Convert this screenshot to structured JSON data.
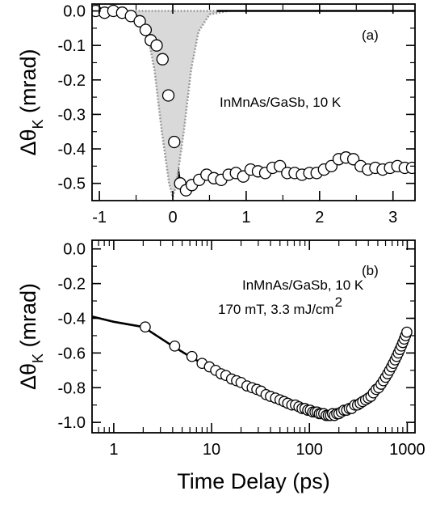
{
  "chart_data": [
    {
      "type": "line",
      "panel_label": "(a)",
      "annotation_lines": [
        "InMnAs/GaSb, 10 K"
      ],
      "ylabel": "ΔθK (mrad)",
      "ylabel_main": "Δθ",
      "ylabel_sub": "K",
      "ylabel_rest": " (mrad)",
      "xlim": [
        -1.1,
        3.3
      ],
      "ylim": [
        -0.55,
        0.02
      ],
      "x_scale": "linear",
      "x_ticks": [
        -1,
        0,
        1,
        2,
        3
      ],
      "x_tick_labels": [
        "-1",
        "0",
        "1",
        "2",
        "3"
      ],
      "y_ticks": [
        0.0,
        -0.1,
        -0.2,
        -0.3,
        -0.4,
        -0.5
      ],
      "y_tick_labels": [
        "0.0",
        "-0.1",
        "-0.2",
        "-0.3",
        "-0.4",
        "-0.5"
      ],
      "series": [
        {
          "style": "markers",
          "x": [
            -1.05,
            -0.93,
            -0.81,
            -0.69,
            -0.57,
            -0.45,
            -0.37,
            -0.3,
            -0.22,
            -0.14,
            -0.06,
            0.02,
            0.1,
            0.18,
            0.26,
            0.36,
            0.46,
            0.56,
            0.66,
            0.76,
            0.86,
            0.96,
            1.06,
            1.16,
            1.26,
            1.36,
            1.46,
            1.56,
            1.66,
            1.76,
            1.86,
            1.96,
            2.06,
            2.16,
            2.26,
            2.36,
            2.46,
            2.56,
            2.66,
            2.76,
            2.86,
            2.96,
            3.06,
            3.16,
            3.26
          ],
          "y": [
            0.0,
            -0.005,
            0.0,
            -0.005,
            -0.015,
            -0.03,
            -0.055,
            -0.085,
            -0.1,
            -0.14,
            -0.245,
            -0.38,
            -0.5,
            -0.52,
            -0.505,
            -0.49,
            -0.475,
            -0.485,
            -0.49,
            -0.475,
            -0.47,
            -0.48,
            -0.46,
            -0.465,
            -0.47,
            -0.455,
            -0.45,
            -0.47,
            -0.47,
            -0.475,
            -0.47,
            -0.47,
            -0.46,
            -0.45,
            -0.43,
            -0.425,
            -0.43,
            -0.45,
            -0.46,
            -0.455,
            -0.46,
            -0.455,
            -0.45,
            -0.455,
            -0.455
          ]
        },
        {
          "style": "line",
          "x": [
            -0.3,
            -0.22,
            -0.14,
            -0.06,
            0.02,
            0.1,
            0.18
          ],
          "y": [
            -0.085,
            -0.1,
            -0.14,
            -0.245,
            -0.38,
            -0.5,
            -0.52
          ]
        },
        {
          "style": "shaded-pulse",
          "x": [
            -0.75,
            -0.5,
            -0.35,
            -0.25,
            -0.15,
            -0.05,
            0.0,
            0.05,
            0.15,
            0.25,
            0.35,
            0.5,
            0.75
          ],
          "y": [
            0.0,
            -0.01,
            -0.06,
            -0.17,
            -0.35,
            -0.5,
            -0.54,
            -0.5,
            -0.35,
            -0.17,
            -0.06,
            -0.01,
            0.0
          ]
        },
        {
          "style": "solid-baseline",
          "x": [
            0.6,
            3.3
          ],
          "y": [
            0.0,
            0.0
          ]
        }
      ]
    },
    {
      "type": "line",
      "panel_label": "(b)",
      "annotation_lines": [
        "InMnAs/GaSb, 10 K",
        "170 mT, 3.3 mJ/cm"
      ],
      "annotation_superscript": "2",
      "ylabel": "ΔθK (mrad)",
      "ylabel_main": "Δθ",
      "ylabel_sub": "K",
      "ylabel_rest": " (mrad)",
      "xlabel": "Time Delay (ps)",
      "x_scale": "log",
      "xlim": [
        0.6,
        1200
      ],
      "ylim": [
        -1.06,
        0.05
      ],
      "x_ticks": [
        1,
        10,
        100,
        1000
      ],
      "x_tick_labels": [
        "1",
        "10",
        "100",
        "1000"
      ],
      "y_ticks": [
        0.0,
        -0.2,
        -0.4,
        -0.6,
        -0.8,
        -1.0
      ],
      "y_tick_labels": [
        "0.0",
        "-0.2",
        "-0.4",
        "-0.6",
        "-0.8",
        "-1.0"
      ],
      "series": [
        {
          "style": "line",
          "x": [
            0.6,
            1,
            2,
            4,
            6,
            8,
            12,
            20,
            30,
            50,
            80,
            120,
            160,
            200,
            280,
            400,
            550,
            700,
            850,
            1000
          ],
          "y": [
            -0.39,
            -0.42,
            -0.45,
            -0.56,
            -0.62,
            -0.66,
            -0.72,
            -0.77,
            -0.81,
            -0.87,
            -0.92,
            -0.95,
            -0.96,
            -0.95,
            -0.91,
            -0.86,
            -0.77,
            -0.66,
            -0.56,
            -0.48
          ]
        },
        {
          "style": "markers",
          "x": [
            2.1,
            4.2,
            6.3,
            8,
            9.5,
            11,
            12.5,
            14,
            16,
            18,
            20,
            23,
            26,
            29,
            32,
            36,
            40,
            45,
            50,
            55,
            60,
            66,
            72,
            78,
            84,
            90,
            96,
            102,
            108,
            114,
            120,
            126,
            132,
            140,
            148,
            156,
            164,
            172,
            180,
            190,
            200,
            212,
            225,
            240,
            255,
            270,
            290,
            310,
            330,
            350,
            375,
            400,
            425,
            450,
            480,
            510,
            540,
            570,
            600,
            630,
            660,
            690,
            720,
            750,
            780,
            810,
            840,
            870,
            900,
            930,
            960,
            990
          ],
          "y": [
            -0.45,
            -0.56,
            -0.62,
            -0.66,
            -0.68,
            -0.7,
            -0.72,
            -0.73,
            -0.75,
            -0.76,
            -0.77,
            -0.79,
            -0.8,
            -0.81,
            -0.82,
            -0.84,
            -0.85,
            -0.86,
            -0.87,
            -0.88,
            -0.89,
            -0.9,
            -0.9,
            -0.91,
            -0.92,
            -0.92,
            -0.93,
            -0.93,
            -0.94,
            -0.94,
            -0.94,
            -0.95,
            -0.95,
            -0.95,
            -0.96,
            -0.96,
            -0.96,
            -0.95,
            -0.96,
            -0.95,
            -0.95,
            -0.94,
            -0.93,
            -0.93,
            -0.92,
            -0.92,
            -0.9,
            -0.9,
            -0.89,
            -0.88,
            -0.87,
            -0.86,
            -0.85,
            -0.83,
            -0.81,
            -0.8,
            -0.78,
            -0.76,
            -0.74,
            -0.72,
            -0.7,
            -0.68,
            -0.66,
            -0.64,
            -0.62,
            -0.6,
            -0.58,
            -0.56,
            -0.54,
            -0.52,
            -0.5,
            -0.48
          ]
        }
      ]
    }
  ]
}
